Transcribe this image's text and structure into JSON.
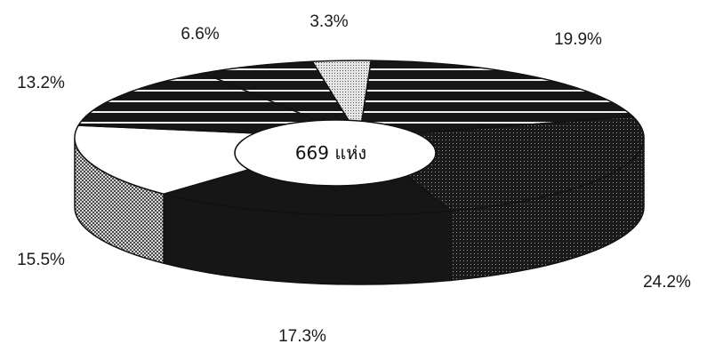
{
  "chart_data": {
    "type": "pie",
    "style": "3d-donut",
    "center_label": "669  แห่ง",
    "slices": [
      {
        "value": 3.3,
        "label": "3.3%",
        "fill": "dots-light"
      },
      {
        "value": 19.9,
        "label": "19.9%",
        "fill": "hstripes"
      },
      {
        "value": 24.2,
        "label": "24.2%",
        "fill": "dots-dark"
      },
      {
        "value": 17.3,
        "label": "17.3%",
        "fill": "solid-dark"
      },
      {
        "value": 15.5,
        "label": "15.5%",
        "fill": "white"
      },
      {
        "value": 13.2,
        "label": "13.2%",
        "fill": "hstripes"
      },
      {
        "value": 6.6,
        "label": "6.6%",
        "fill": "hstripes"
      }
    ]
  },
  "colors": {
    "dark": "#161616",
    "light": "#ffffff",
    "dots": "#8a8a8a"
  }
}
